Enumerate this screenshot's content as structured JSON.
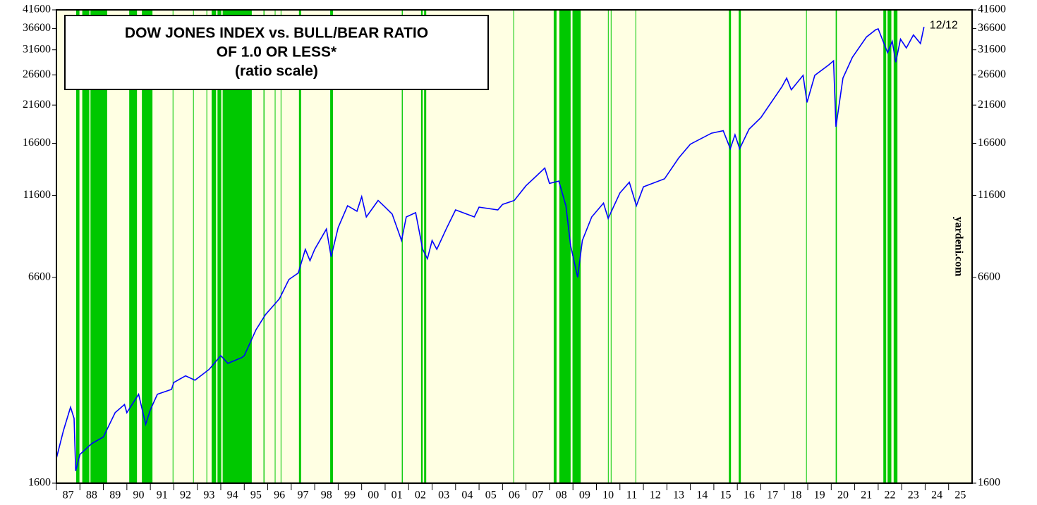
{
  "chart_data": {
    "type": "line",
    "title": [
      "DOW JONES INDEX vs. BULL/BEAR RATIO",
      "OF 1.0 OR LESS*",
      "(ratio scale)"
    ],
    "source": "yardeni.com",
    "end_label": "12/12",
    "log_scale": true,
    "background": "#ffffe3",
    "shade_color": "#00c800",
    "xlim": [
      1987,
      2026
    ],
    "xticks": [
      {
        "value": 1987,
        "label": "87"
      },
      {
        "value": 1988,
        "label": "88"
      },
      {
        "value": 1989,
        "label": "89"
      },
      {
        "value": 1990,
        "label": "90"
      },
      {
        "value": 1991,
        "label": "91"
      },
      {
        "value": 1992,
        "label": "92"
      },
      {
        "value": 1993,
        "label": "93"
      },
      {
        "value": 1994,
        "label": "94"
      },
      {
        "value": 1995,
        "label": "95"
      },
      {
        "value": 1996,
        "label": "96"
      },
      {
        "value": 1997,
        "label": "97"
      },
      {
        "value": 1998,
        "label": "98"
      },
      {
        "value": 1999,
        "label": "99"
      },
      {
        "value": 2000,
        "label": "00"
      },
      {
        "value": 2001,
        "label": "01"
      },
      {
        "value": 2002,
        "label": "02"
      },
      {
        "value": 2003,
        "label": "03"
      },
      {
        "value": 2004,
        "label": "04"
      },
      {
        "value": 2005,
        "label": "05"
      },
      {
        "value": 2006,
        "label": "06"
      },
      {
        "value": 2007,
        "label": "07"
      },
      {
        "value": 2008,
        "label": "08"
      },
      {
        "value": 2009,
        "label": "09"
      },
      {
        "value": 2010,
        "label": "10"
      },
      {
        "value": 2011,
        "label": "11"
      },
      {
        "value": 2012,
        "label": "12"
      },
      {
        "value": 2013,
        "label": "13"
      },
      {
        "value": 2014,
        "label": "14"
      },
      {
        "value": 2015,
        "label": "15"
      },
      {
        "value": 2016,
        "label": "16"
      },
      {
        "value": 2017,
        "label": "17"
      },
      {
        "value": 2018,
        "label": "18"
      },
      {
        "value": 2019,
        "label": "19"
      },
      {
        "value": 2020,
        "label": "20"
      },
      {
        "value": 2021,
        "label": "21"
      },
      {
        "value": 2022,
        "label": "22"
      },
      {
        "value": 2023,
        "label": "23"
      },
      {
        "value": 2024,
        "label": "24"
      },
      {
        "value": 2025,
        "label": "25"
      }
    ],
    "ylim": [
      1600,
      41600
    ],
    "yticks": [
      1600,
      6600,
      11600,
      16600,
      21600,
      26600,
      31600,
      36600,
      41600
    ],
    "shaded_periods": [
      [
        1987.84,
        1987.98
      ],
      [
        1988.1,
        1988.4
      ],
      [
        1988.45,
        1989.16
      ],
      [
        1990.1,
        1990.43
      ],
      [
        1990.64,
        1991.09
      ],
      [
        1991.95,
        1991.98
      ],
      [
        1992.82,
        1992.85
      ],
      [
        1993.39,
        1993.42
      ],
      [
        1993.61,
        1993.8
      ],
      [
        1993.86,
        1994.02
      ],
      [
        1994.08,
        1995.32
      ],
      [
        1995.82,
        1995.86
      ],
      [
        1996.3,
        1996.33
      ],
      [
        1996.55,
        1996.58
      ],
      [
        1997.33,
        1997.42
      ],
      [
        1998.66,
        1998.78
      ],
      [
        2001.71,
        2001.75
      ],
      [
        2002.53,
        2002.6
      ],
      [
        2002.66,
        2002.75
      ],
      [
        2006.46,
        2006.49
      ],
      [
        2008.18,
        2008.3
      ],
      [
        2008.42,
        2008.9
      ],
      [
        2008.98,
        2009.33
      ],
      [
        2010.49,
        2010.52
      ],
      [
        2010.61,
        2010.64
      ],
      [
        2011.66,
        2011.69
      ],
      [
        2015.64,
        2015.73
      ],
      [
        2016.06,
        2016.15
      ],
      [
        2018.93,
        2018.96
      ],
      [
        2020.19,
        2020.24
      ],
      [
        2022.22,
        2022.34
      ],
      [
        2022.4,
        2022.56
      ],
      [
        2022.66,
        2022.82
      ]
    ],
    "series": [
      {
        "name": "Dow Jones Index",
        "color": "#0000ff",
        "x": [
          1987.0,
          1987.3,
          1987.6,
          1987.75,
          1987.82,
          1988.0,
          1988.5,
          1989.0,
          1989.5,
          1989.9,
          1990.0,
          1990.5,
          1990.8,
          1991.0,
          1991.3,
          1991.9,
          1992.0,
          1992.5,
          1992.9,
          1993.5,
          1994.0,
          1994.3,
          1994.9,
          1995.0,
          1995.5,
          1995.9,
          1996.5,
          1996.9,
          1997.3,
          1997.6,
          1997.8,
          1998.0,
          1998.5,
          1998.7,
          1999.0,
          1999.4,
          1999.8,
          2000.0,
          2000.2,
          2000.7,
          2001.0,
          2001.3,
          2001.7,
          2001.9,
          2002.3,
          2002.6,
          2002.8,
          2003.0,
          2003.2,
          2003.6,
          2004.0,
          2004.8,
          2005.0,
          2005.8,
          2006.0,
          2006.5,
          2007.0,
          2007.8,
          2008.0,
          2008.4,
          2008.7,
          2008.9,
          2009.2,
          2009.4,
          2009.8,
          2010.3,
          2010.5,
          2011.0,
          2011.4,
          2011.7,
          2012.0,
          2012.9,
          2013.5,
          2014.0,
          2014.9,
          2015.4,
          2015.7,
          2015.9,
          2016.1,
          2016.5,
          2017.0,
          2017.9,
          2018.1,
          2018.3,
          2018.8,
          2018.97,
          2019.3,
          2019.9,
          2020.1,
          2020.2,
          2020.5,
          2020.9,
          2021.5,
          2021.9,
          2022.0,
          2022.4,
          2022.6,
          2022.75,
          2022.95,
          2023.2,
          2023.5,
          2023.8,
          2023.95
        ],
        "values": [
          1900,
          2300,
          2700,
          2500,
          1740,
          1950,
          2100,
          2200,
          2600,
          2750,
          2600,
          2950,
          2400,
          2650,
          2950,
          3050,
          3200,
          3350,
          3250,
          3500,
          3850,
          3650,
          3800,
          3850,
          4600,
          5100,
          5700,
          6500,
          6800,
          8000,
          7400,
          8000,
          9200,
          7600,
          9300,
          10800,
          10400,
          11500,
          10000,
          11200,
          10700,
          10200,
          8500,
          10000,
          10300,
          8000,
          7500,
          8500,
          8000,
          9200,
          10500,
          10000,
          10700,
          10500,
          10900,
          11200,
          12400,
          14000,
          12600,
          12800,
          10800,
          8200,
          6600,
          8500,
          10000,
          11000,
          9900,
          11800,
          12700,
          10800,
          12300,
          13000,
          15000,
          16500,
          17800,
          18100,
          16000,
          17600,
          16000,
          18300,
          19800,
          24500,
          26000,
          24000,
          26500,
          22000,
          26500,
          28500,
          29300,
          18600,
          26000,
          30000,
          34500,
          36300,
          36500,
          31000,
          33500,
          29000,
          34000,
          32000,
          35000,
          33000,
          37000
        ]
      }
    ]
  }
}
